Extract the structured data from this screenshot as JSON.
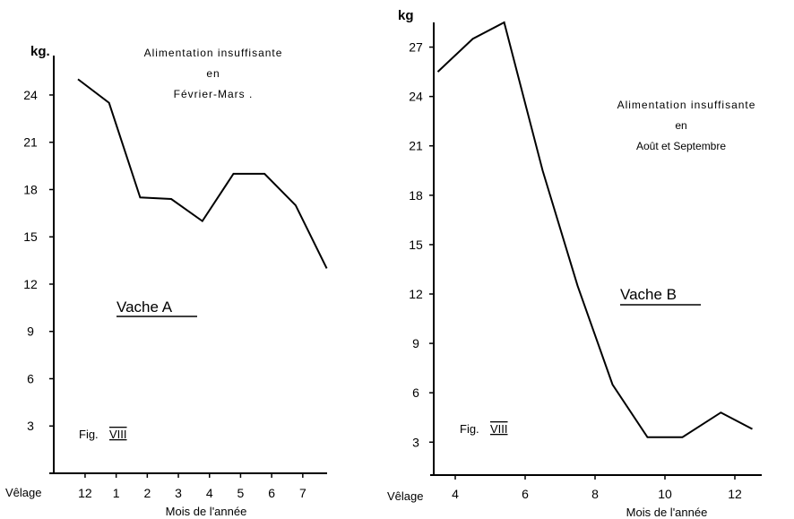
{
  "chart_data": [
    {
      "type": "line",
      "ylabel": "kg.",
      "xlabel": "Mois de l'année",
      "annotation": [
        "Alimentation insuffisante",
        "en",
        "Février-Mars ."
      ],
      "panel_label": "Vache A",
      "fig_label": [
        "Fig.",
        "VIII"
      ],
      "x_first_label": "Vêlage",
      "x_ticks": [
        "12",
        "1",
        "2",
        "3",
        "4",
        "5",
        "6",
        "7"
      ],
      "y_ticks": [
        "3",
        "6",
        "9",
        "12",
        "15",
        "18",
        "21",
        "24"
      ],
      "ylim": [
        0,
        26.5
      ],
      "x": [
        0,
        1,
        2,
        3,
        4,
        5,
        6,
        7,
        8
      ],
      "values": [
        25,
        23.5,
        17.5,
        17.4,
        16,
        19,
        19,
        17,
        13
      ],
      "grid": false
    },
    {
      "type": "line",
      "ylabel": "kg",
      "xlabel": "Mois de l'année",
      "annotation": [
        "Alimentation insuffisante",
        "en",
        "Août et Septembre"
      ],
      "panel_label": "Vache B",
      "fig_label": [
        "Fig.",
        "VIII"
      ],
      "x_first_label": "Vêlage",
      "x_tick_labels": [
        "4",
        "6",
        "8",
        "10",
        "12"
      ],
      "x_tick_values": [
        4,
        6,
        8,
        10,
        12
      ],
      "y_ticks": [
        "3",
        "6",
        "9",
        "12",
        "15",
        "18",
        "21",
        "24",
        "27"
      ],
      "ylim": [
        1,
        28.5
      ],
      "xlim": [
        3,
        13
      ],
      "x": [
        3.5,
        4.5,
        5.4,
        6.5,
        7.5,
        8.5,
        9.5,
        10.5,
        11.6,
        12.5
      ],
      "values": [
        25.5,
        27.5,
        28.5,
        19.5,
        12.5,
        6.5,
        3.3,
        3.3,
        4.8,
        3.8
      ],
      "grid": false
    }
  ]
}
